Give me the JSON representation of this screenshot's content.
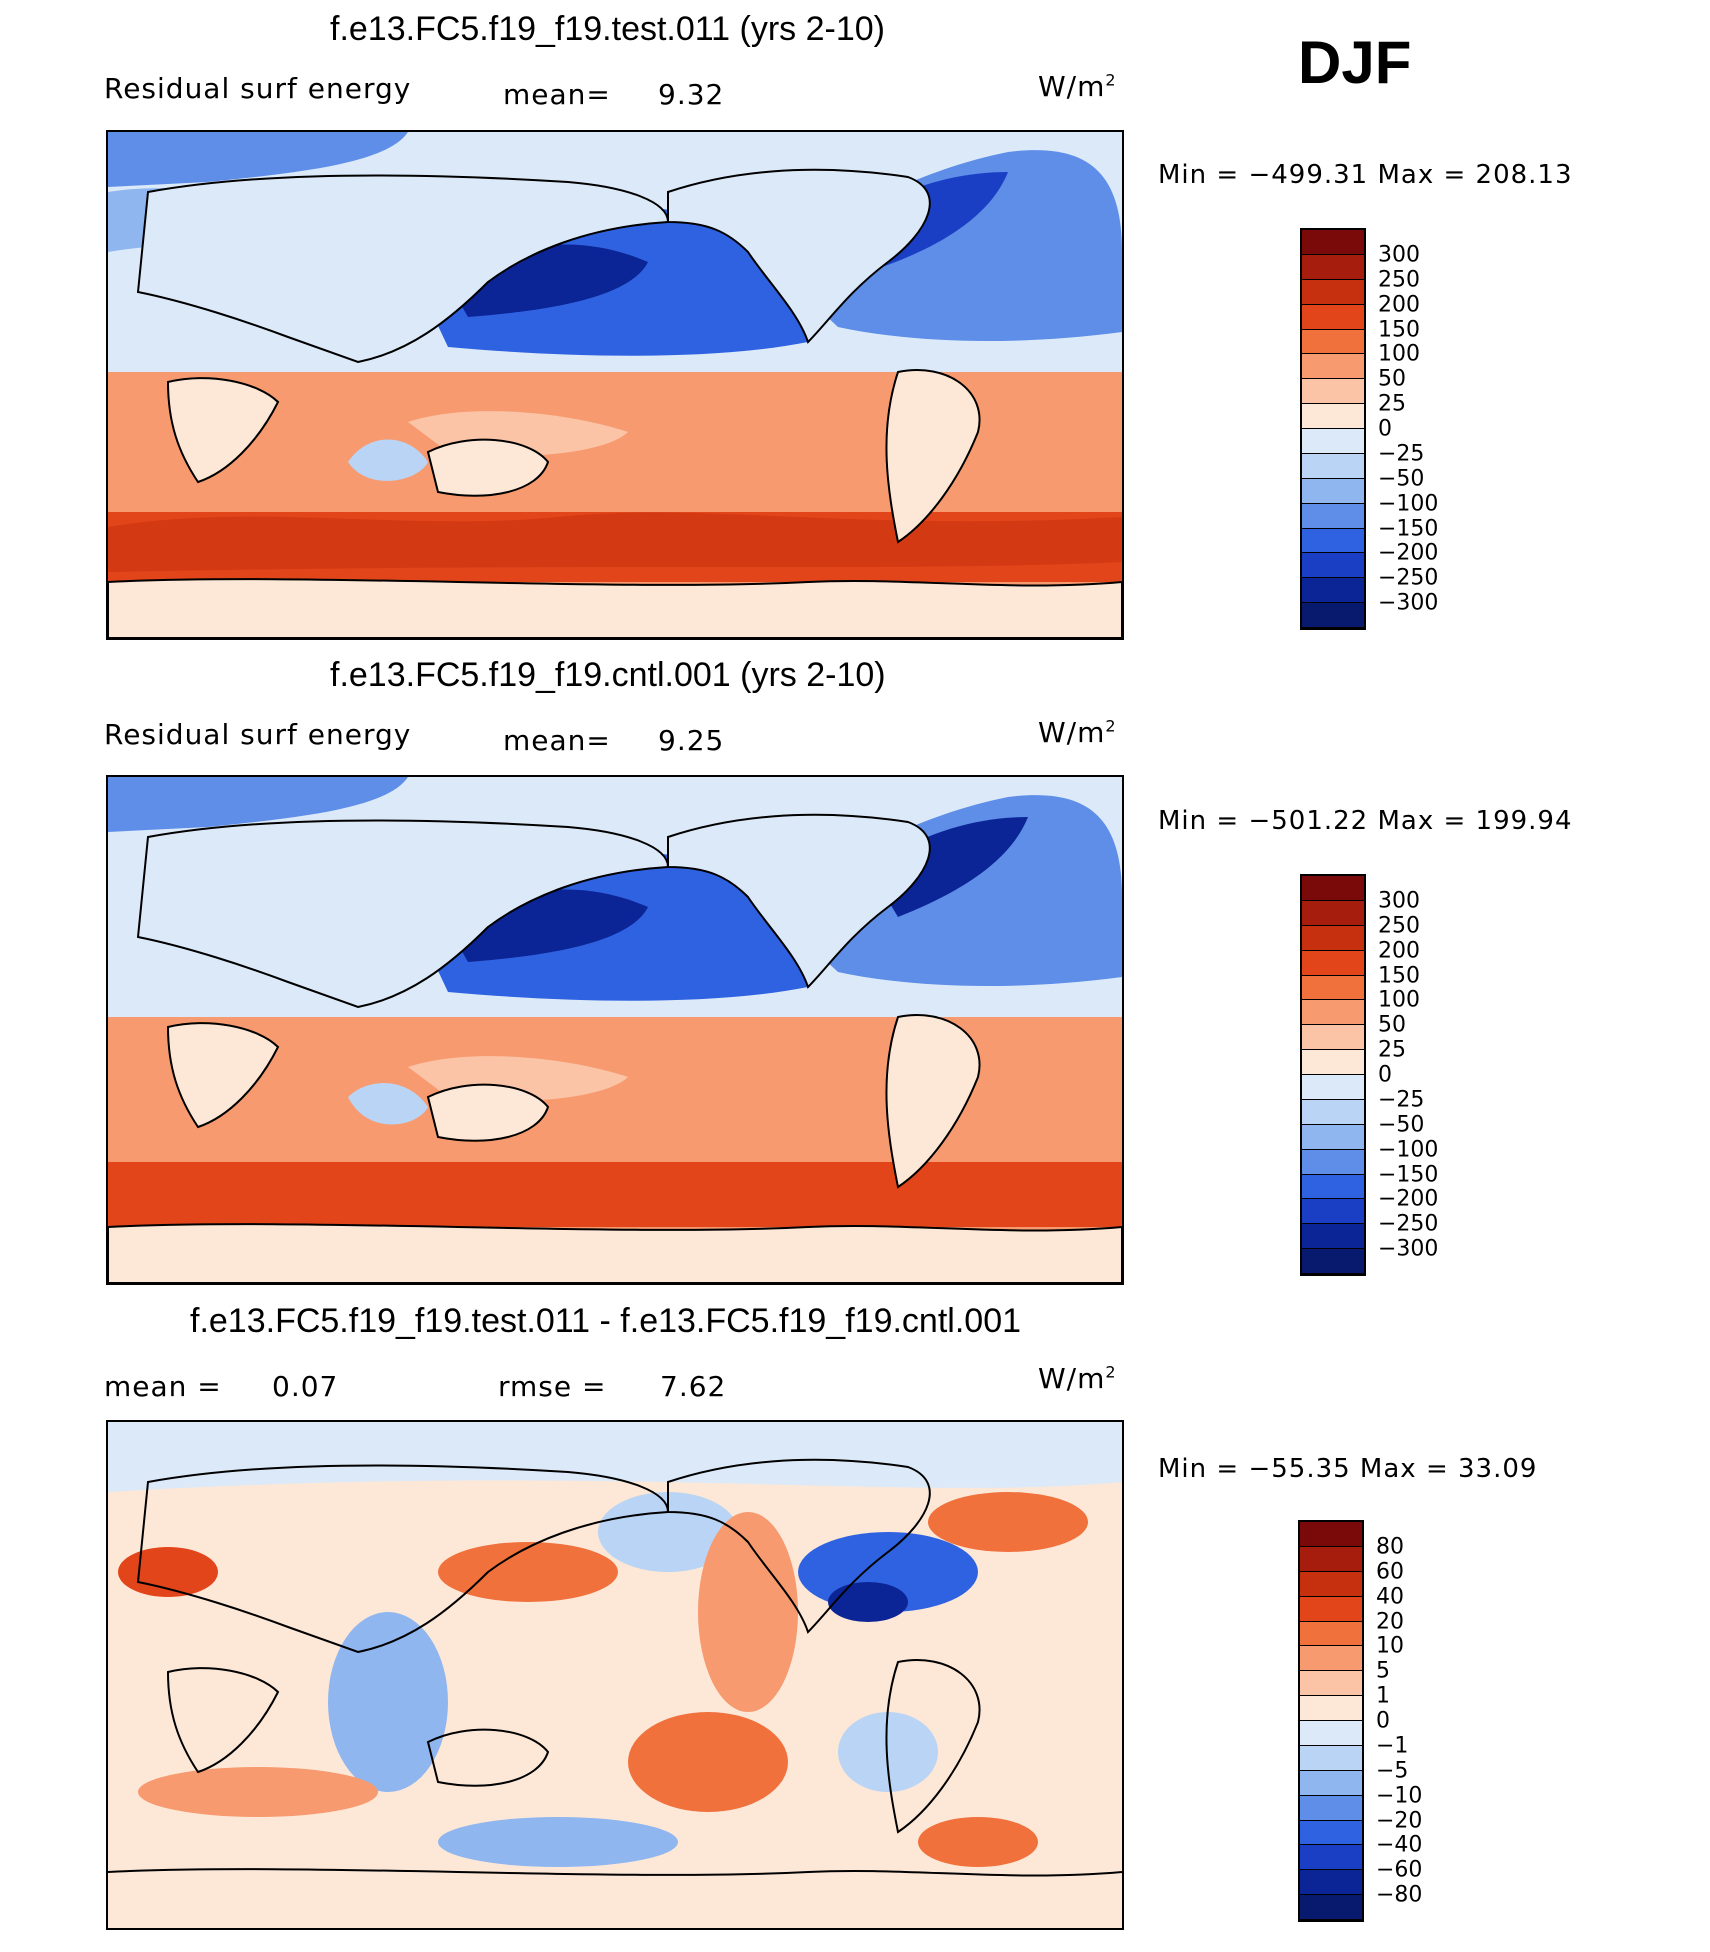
{
  "season": "DJF",
  "units_text": "W/m",
  "units_exp": "2",
  "panels": [
    {
      "title": "f.e13.FC5.f19_f19.test.011 (yrs 2-10)",
      "label": "Residual surf energy",
      "stat1_name": "mean=",
      "stat1_value": "9.32",
      "min_text": "Min  =  −499.31  Max  =  208.13",
      "levels": [
        "300",
        "250",
        "200",
        "150",
        "100",
        "50",
        "25",
        "0",
        "−25",
        "−50",
        "−100",
        "−150",
        "−200",
        "−250",
        "−300"
      ]
    },
    {
      "title": "f.e13.FC5.f19_f19.cntl.001 (yrs 2-10)",
      "label": "Residual surf energy",
      "stat1_name": "mean=",
      "stat1_value": "9.25",
      "min_text": "Min  =  −501.22  Max  =  199.94",
      "levels": [
        "300",
        "250",
        "200",
        "150",
        "100",
        "50",
        "25",
        "0",
        "−25",
        "−50",
        "−100",
        "−150",
        "−200",
        "−250",
        "−300"
      ]
    },
    {
      "title": "f.e13.FC5.f19_f19.test.011 - f.e13.FC5.f19_f19.cntl.001",
      "label": "mean  =",
      "label_value": "0.07",
      "stat1_name": "rmse  =",
      "stat1_value": "7.62",
      "min_text": "Min  =  −55.35  Max  =    33.09",
      "levels": [
        "80",
        "60",
        "40",
        "20",
        "10",
        "5",
        "1",
        "0",
        "−1",
        "−5",
        "−10",
        "−20",
        "−40",
        "−60",
        "−80"
      ]
    }
  ],
  "colors": {
    "scale": [
      "#7a0a0a",
      "#a61d0e",
      "#c7300f",
      "#e2451a",
      "#f0713c",
      "#f79a6f",
      "#fbc4a6",
      "#fde8d8",
      "#dbe9f8",
      "#b9d4f4",
      "#8fb6ef",
      "#5e8ee8",
      "#2f62e0",
      "#1a3fc4",
      "#0c2596",
      "#071a6e"
    ]
  }
}
